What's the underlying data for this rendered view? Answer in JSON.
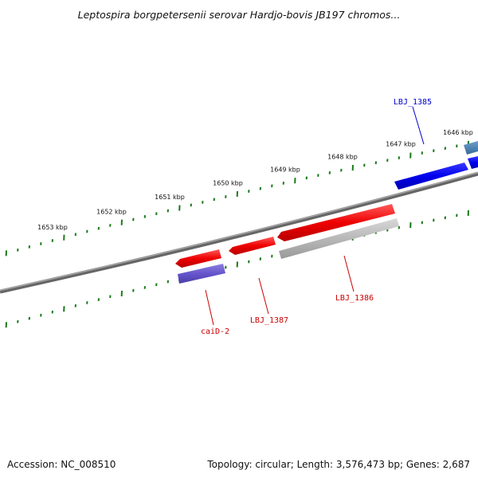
{
  "title": "Leptospira borgpetersenii serovar Hardjo-bovis JB197 chromos...",
  "footer": {
    "accession": "Accession: NC_008510",
    "summary": "Topology: circular; Length: 3,576,473 bp; Genes: 2,687"
  },
  "scale": {
    "kbp_labels": [
      "1646 kbp",
      "1647 kbp",
      "1648 kbp",
      "1649 kbp",
      "1650 kbp",
      "1651 kbp",
      "1652 kbp",
      "1653 kbp"
    ]
  },
  "genes": [
    {
      "id": "LBJ_1385",
      "label": "LBJ_1385",
      "strand": "forward",
      "color": "#0000ee"
    },
    {
      "id": "LBJ_1386",
      "label": "LBJ_1386",
      "strand": "reverse",
      "color": "#ee0000"
    },
    {
      "id": "LBJ_1387",
      "label": "LBJ_1387",
      "strand": "reverse",
      "color": "#ee0000"
    },
    {
      "id": "caiD-2",
      "label": "caiD-2",
      "strand": "reverse",
      "color": "#ee0000"
    }
  ],
  "colors": {
    "backbone": "#808080",
    "ticks": "#1a7a1a",
    "forward_gene": "#0000ee",
    "reverse_gene": "#ee0000",
    "feature_purple": "#6655cc",
    "feature_gray": "#b8b8b8",
    "feature_steelblue": "#4a7fb0"
  }
}
